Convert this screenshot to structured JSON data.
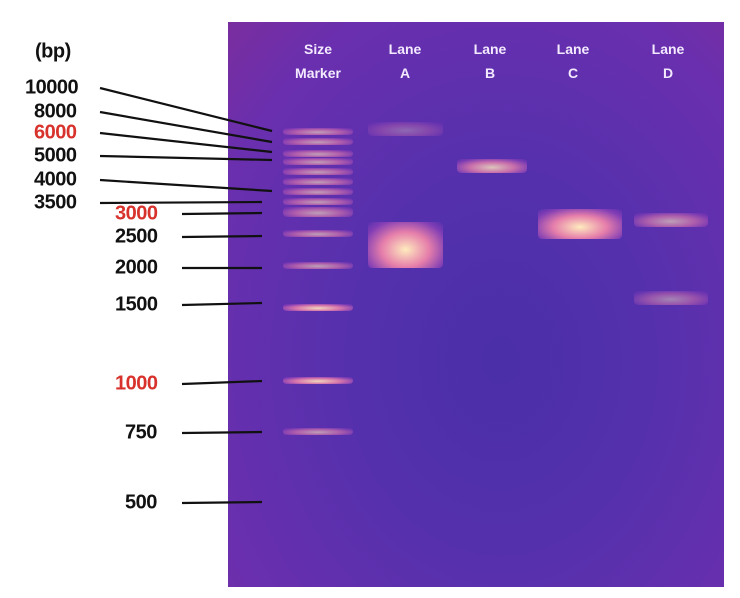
{
  "unit_label": "(bp)",
  "marker_labels": [
    {
      "bp": "10000",
      "highlight": false
    },
    {
      "bp": "8000",
      "highlight": false
    },
    {
      "bp": "6000",
      "highlight": true
    },
    {
      "bp": "5000",
      "highlight": false
    },
    {
      "bp": "4000",
      "highlight": false
    },
    {
      "bp": "3500",
      "highlight": false
    },
    {
      "bp": "3000",
      "highlight": true
    },
    {
      "bp": "2500",
      "highlight": false
    },
    {
      "bp": "2000",
      "highlight": false
    },
    {
      "bp": "1500",
      "highlight": false
    },
    {
      "bp": "1000",
      "highlight": true
    },
    {
      "bp": "750",
      "highlight": false
    },
    {
      "bp": "500",
      "highlight": false
    }
  ],
  "lanes": [
    {
      "line1": "Size",
      "line2": "Marker"
    },
    {
      "line1": "Lane",
      "line2": "A"
    },
    {
      "line1": "Lane",
      "line2": "B"
    },
    {
      "line1": "Lane",
      "line2": "C"
    },
    {
      "line1": "Lane",
      "line2": "D"
    }
  ],
  "lane_bands": {
    "A": [
      {
        "bp": 10500,
        "intensity": 0.3
      },
      {
        "bp": 2300,
        "intensity": 1.0
      }
    ],
    "B": [
      {
        "bp": 4500,
        "intensity": 0.8
      }
    ],
    "C": [
      {
        "bp": 2700,
        "intensity": 1.0
      }
    ],
    "D": [
      {
        "bp": 2800,
        "intensity": 0.6
      },
      {
        "bp": 1600,
        "intensity": 0.45
      }
    ]
  },
  "colors": {
    "gel": "#5530ad",
    "band": "#ffd0a0",
    "label_highlight": "#d8322c"
  }
}
